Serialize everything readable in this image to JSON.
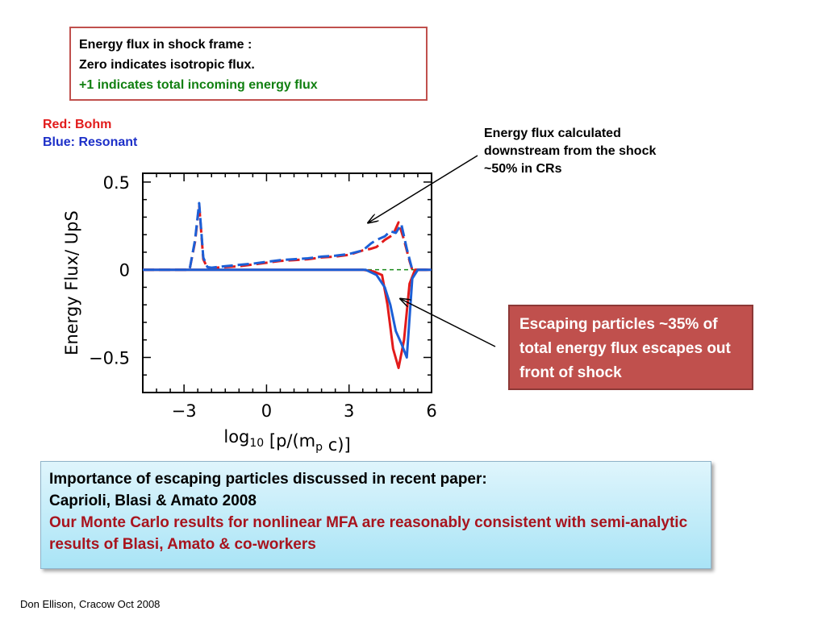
{
  "top_box": {
    "line1": "Energy flux in shock frame :",
    "line2": "Zero indicates isotropic flux.",
    "line3": "+1 indicates total incoming energy flux"
  },
  "legend": {
    "red": "Red: Bohm",
    "blue": "Blue: Resonant"
  },
  "note_right": "Energy flux calculated downstream from the shock ~50% in CRs",
  "escape_box": "Escaping particles ~35% of total energy flux escapes out front of shock",
  "bottom_box": {
    "line1": "Importance of escaping particles discussed in recent paper:",
    "line2": "Caprioli, Blasi & Amato 2008",
    "line3": "Our Monte Carlo results for nonlinear MFA are reasonably consistent with semi-analytic results of Blasi, Amato  & co-workers"
  },
  "footer": "Don Ellison, Cracow Oct 2008",
  "colors": {
    "bohm": "#e21b1b",
    "resonant": "#1c5fd6",
    "zero_line": "#1a8a1a",
    "arrow": "#000000"
  },
  "chart_data": {
    "type": "line",
    "ylabel": "Energy Flux/ UpS",
    "xlabel_parts": {
      "base": "log",
      "sub1": "10",
      "mid": " [p/(m",
      "sub2": "p",
      "end": " c)]"
    },
    "xlim": [
      -4.5,
      6
    ],
    "ylim": [
      -0.7,
      0.55
    ],
    "xticks": [
      -3,
      0,
      3,
      6
    ],
    "xtick_labels": [
      "−3",
      "0",
      "3",
      "6"
    ],
    "yticks": [
      0.5,
      0,
      -0.5
    ],
    "ytick_labels": [
      "0.5",
      "0",
      "−0.5"
    ],
    "reference_line": {
      "y": 0,
      "style": "dashed"
    },
    "series": [
      {
        "name": "Bohm",
        "part": "upper",
        "style": "dashed",
        "x": [
          -4.5,
          -2.8,
          -2.6,
          -2.45,
          -2.3,
          -2.15,
          -2.0,
          -1.5,
          -1.0,
          -0.5,
          0.0,
          0.5,
          1.0,
          1.5,
          2.0,
          2.5,
          3.0,
          3.5,
          3.8,
          4.0,
          4.3,
          4.6,
          4.8,
          5.0,
          5.2,
          5.3,
          6.0
        ],
        "y": [
          0,
          0,
          0.16,
          0.37,
          0.06,
          0.01,
          0.01,
          0.015,
          0.02,
          0.03,
          0.04,
          0.05,
          0.055,
          0.06,
          0.07,
          0.075,
          0.085,
          0.11,
          0.12,
          0.13,
          0.17,
          0.2,
          0.27,
          0.17,
          0.05,
          0,
          0
        ]
      },
      {
        "name": "Resonant",
        "part": "upper",
        "style": "dashed",
        "x": [
          -4.5,
          -2.8,
          -2.6,
          -2.45,
          -2.3,
          -2.15,
          -2.0,
          -1.5,
          -1.0,
          -0.5,
          0.0,
          0.5,
          1.0,
          1.5,
          2.0,
          2.5,
          3.0,
          3.5,
          3.8,
          4.0,
          4.3,
          4.5,
          4.7,
          4.9,
          5.1,
          5.3,
          6.0
        ],
        "y": [
          0,
          0,
          0.17,
          0.38,
          0.07,
          0.015,
          0.012,
          0.02,
          0.028,
          0.035,
          0.045,
          0.055,
          0.06,
          0.065,
          0.075,
          0.08,
          0.09,
          0.11,
          0.15,
          0.17,
          0.19,
          0.22,
          0.21,
          0.26,
          0.12,
          0,
          0
        ]
      },
      {
        "name": "Bohm",
        "part": "lower",
        "style": "solid",
        "x": [
          -4.5,
          3.5,
          3.9,
          4.2,
          4.4,
          4.6,
          4.8,
          5.0,
          5.2,
          5.4,
          6.0
        ],
        "y": [
          0,
          0,
          -0.01,
          -0.03,
          -0.2,
          -0.45,
          -0.56,
          -0.4,
          -0.08,
          0,
          0
        ]
      },
      {
        "name": "Resonant",
        "part": "lower",
        "style": "solid",
        "x": [
          -4.5,
          3.6,
          4.0,
          4.3,
          4.5,
          4.7,
          4.9,
          5.1,
          5.3,
          5.5,
          6.0
        ],
        "y": [
          0,
          0,
          -0.03,
          -0.1,
          -0.2,
          -0.35,
          -0.42,
          -0.5,
          -0.05,
          0,
          0
        ]
      }
    ]
  }
}
